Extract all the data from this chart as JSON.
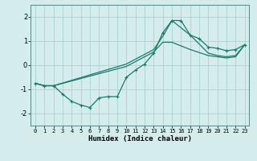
{
  "title": "",
  "xlabel": "Humidex (Indice chaleur)",
  "ylabel": "",
  "xlim": [
    -0.5,
    23.5
  ],
  "ylim": [
    -2.5,
    2.5
  ],
  "xticks": [
    0,
    1,
    2,
    3,
    4,
    5,
    6,
    7,
    8,
    9,
    10,
    11,
    12,
    13,
    14,
    15,
    16,
    17,
    18,
    19,
    20,
    21,
    22,
    23
  ],
  "yticks": [
    -2,
    -1,
    0,
    1,
    2
  ],
  "background_color": "#d4edec",
  "grid_color": "#a8d4d0",
  "line_color": "#1a7a6e",
  "line1_x": [
    0,
    1,
    2,
    3,
    4,
    5,
    6,
    7,
    8,
    9,
    10,
    11,
    12,
    13,
    14,
    15,
    16,
    17,
    18,
    19,
    20,
    21,
    22,
    23
  ],
  "line1_y": [
    -0.75,
    -0.85,
    -0.85,
    -1.2,
    -1.5,
    -1.65,
    -1.75,
    -1.35,
    -1.3,
    -1.3,
    -0.5,
    -0.2,
    0.05,
    0.5,
    1.35,
    1.85,
    1.85,
    1.25,
    1.1,
    0.75,
    0.7,
    0.6,
    0.65,
    0.85
  ],
  "line2_x": [
    0,
    1,
    2,
    10,
    13,
    14,
    15,
    17,
    19,
    20,
    21,
    22,
    23
  ],
  "line2_y": [
    -0.75,
    -0.85,
    -0.85,
    -0.05,
    0.55,
    0.95,
    0.95,
    0.65,
    0.4,
    0.35,
    0.3,
    0.35,
    0.85
  ],
  "line3_x": [
    0,
    1,
    2,
    10,
    13,
    14,
    15,
    17,
    19,
    20,
    21,
    22,
    23
  ],
  "line3_y": [
    -0.75,
    -0.85,
    -0.85,
    0.05,
    0.65,
    1.2,
    1.85,
    1.25,
    0.5,
    0.4,
    0.35,
    0.4,
    0.85
  ],
  "marker_size": 2.5,
  "linewidth": 0.9
}
